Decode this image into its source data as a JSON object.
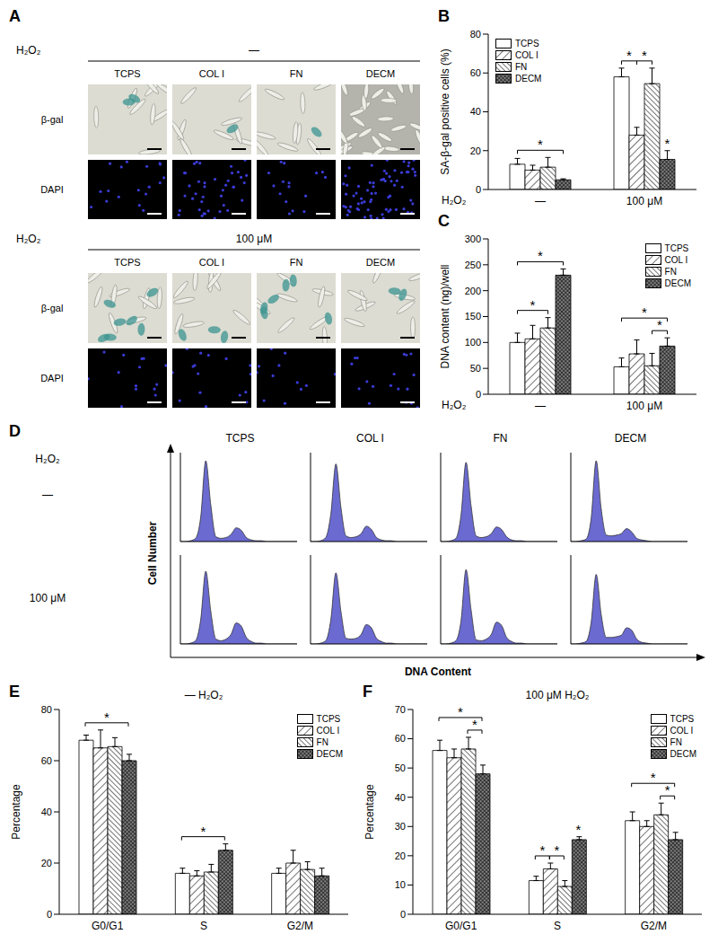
{
  "images": {
    "panel": "A",
    "row_label": "H₂O₂",
    "groups": [
      "—",
      "100 μM"
    ],
    "columns": [
      "TCPS",
      "COL I",
      "FN",
      "DECM"
    ],
    "rows": [
      "β-gal",
      "DAPI"
    ]
  },
  "chart_data": [
    {
      "panel": "B",
      "type": "bar",
      "y_label": "SA-β-gal positive cells (%)",
      "x_label": "H₂O₂",
      "categories": [
        "—",
        "100 μM"
      ],
      "ylim": [
        0,
        80
      ],
      "yticks": [
        0,
        20,
        40,
        60,
        80
      ],
      "legend": "upper left",
      "series": [
        {
          "name": "TCPS",
          "color": "#ffffff",
          "values": [
            13,
            58
          ],
          "errors": [
            3,
            4.5
          ]
        },
        {
          "name": "COL I",
          "color": "#ffffff",
          "values": [
            10,
            28
          ],
          "errors": [
            2.5,
            4
          ]
        },
        {
          "name": "FN",
          "color": "#ffffff",
          "values": [
            11.5,
            54.5
          ],
          "errors": [
            5,
            8
          ]
        },
        {
          "name": "DECM",
          "color": "#808080",
          "values": [
            5,
            15.5
          ],
          "errors": [
            0.5,
            4.5
          ]
        }
      ],
      "annotations": [
        {
          "text": "*",
          "group": "—",
          "from": "TCPS",
          "to": "DECM"
        },
        {
          "text": "*",
          "group": "100 μM",
          "from": "TCPS",
          "to": "COL I"
        },
        {
          "text": "*",
          "group": "100 μM",
          "from": "COL I",
          "to": "FN"
        },
        {
          "text": "*",
          "group": "100 μM",
          "series": "DECM"
        }
      ]
    },
    {
      "panel": "C",
      "type": "bar",
      "y_label": "DNA content (ng)/well",
      "x_label": "H₂O₂",
      "categories": [
        "—",
        "100 μM"
      ],
      "ylim": [
        0,
        300
      ],
      "yticks": [
        0,
        50,
        100,
        150,
        200,
        250,
        300
      ],
      "legend": "upper right",
      "series": [
        {
          "name": "TCPS",
          "color": "#ffffff",
          "values": [
            100,
            53
          ],
          "errors": [
            18,
            17
          ]
        },
        {
          "name": "COL I",
          "color": "#ffffff",
          "values": [
            107,
            78
          ],
          "errors": [
            26,
            27
          ]
        },
        {
          "name": "FN",
          "color": "#ffffff",
          "values": [
            128,
            55
          ],
          "errors": [
            20,
            24
          ]
        },
        {
          "name": "DECM",
          "color": "#808080",
          "values": [
            230,
            93
          ],
          "errors": [
            12,
            16
          ]
        }
      ],
      "annotations": [
        {
          "text": "*",
          "group": "—",
          "from": "TCPS",
          "to": "FN"
        },
        {
          "text": "*",
          "group": "—",
          "from": "TCPS",
          "to": "DECM"
        },
        {
          "text": "*",
          "group": "100 μM",
          "from": "FN",
          "to": "DECM"
        },
        {
          "text": "*",
          "group": "100 μM",
          "from": "TCPS",
          "to": "DECM"
        }
      ]
    },
    {
      "panel": "D",
      "type": "area",
      "row_label": "H₂O₂",
      "x_label": "DNA Content",
      "y_label": "Cell Number",
      "columns": [
        "TCPS",
        "COL I",
        "FN",
        "DECM"
      ],
      "tick_labels": false,
      "color": "#5050c8",
      "x": [
        0,
        1,
        2,
        3,
        4,
        5,
        6,
        7,
        8,
        9,
        10,
        11,
        12,
        13,
        14,
        15,
        16,
        17,
        18,
        19,
        20,
        21,
        22,
        23
      ],
      "xlim": [
        0,
        23
      ],
      "ylim": [
        0,
        110
      ],
      "rows": [
        {
          "label": "—",
          "values": [
            [
              0,
              0,
              1,
              4,
              30,
              100,
              45,
              6,
              4,
              5,
              9,
              17,
              14,
              5,
              2,
              1,
              1,
              0,
              0,
              0,
              0,
              0,
              0,
              0
            ],
            [
              0,
              0,
              1,
              5,
              34,
              96,
              42,
              7,
              5,
              6,
              10,
              19,
              15,
              5,
              2,
              1,
              1,
              0,
              0,
              0,
              0,
              0,
              0,
              0
            ],
            [
              0,
              0,
              1,
              4,
              32,
              98,
              44,
              7,
              5,
              6,
              10,
              18,
              15,
              6,
              2,
              1,
              1,
              0,
              0,
              0,
              0,
              0,
              0,
              0
            ],
            [
              0,
              0,
              1,
              3,
              28,
              100,
              40,
              8,
              7,
              8,
              10,
              16,
              12,
              4,
              2,
              1,
              0,
              0,
              0,
              0,
              0,
              0,
              0,
              0
            ]
          ]
        },
        {
          "label": "100 μM",
          "values": [
            [
              0,
              0,
              1,
              4,
              30,
              90,
              40,
              6,
              4,
              6,
              12,
              26,
              22,
              8,
              3,
              1,
              1,
              0,
              0,
              0,
              0,
              0,
              0,
              0
            ],
            [
              0,
              0,
              1,
              4,
              30,
              88,
              40,
              7,
              6,
              7,
              12,
              24,
              20,
              7,
              3,
              1,
              1,
              0,
              0,
              0,
              0,
              0,
              0,
              0
            ],
            [
              0,
              0,
              1,
              4,
              28,
              92,
              42,
              5,
              4,
              6,
              12,
              27,
              23,
              8,
              3,
              1,
              1,
              0,
              0,
              0,
              0,
              0,
              0,
              0
            ],
            [
              0,
              0,
              1,
              3,
              26,
              86,
              36,
              8,
              8,
              9,
              11,
              20,
              17,
              6,
              2,
              1,
              0,
              0,
              0,
              0,
              0,
              0,
              0,
              0
            ]
          ]
        }
      ]
    },
    {
      "panel": "E",
      "type": "bar",
      "title": "— H₂O₂",
      "y_label": "Percentage",
      "categories": [
        "G0/G1",
        "S",
        "G2/M"
      ],
      "ylim": [
        0,
        80
      ],
      "yticks": [
        0,
        20,
        40,
        60,
        80
      ],
      "legend": "upper right",
      "series": [
        {
          "name": "TCPS",
          "color": "#ffffff",
          "values": [
            68,
            16,
            16
          ],
          "errors": [
            2,
            2,
            2
          ]
        },
        {
          "name": "COL I",
          "color": "#ffffff",
          "values": [
            65,
            15,
            20
          ],
          "errors": [
            7,
            2,
            5
          ]
        },
        {
          "name": "FN",
          "color": "#ffffff",
          "values": [
            65.5,
            16.5,
            17.5
          ],
          "errors": [
            3.5,
            3,
            3
          ]
        },
        {
          "name": "DECM",
          "color": "#808080",
          "values": [
            60,
            25,
            15
          ],
          "errors": [
            2.5,
            2.5,
            3
          ]
        }
      ],
      "annotations": [
        {
          "text": "*",
          "group": "G0/G1",
          "from": "TCPS",
          "to": "DECM"
        },
        {
          "text": "*",
          "group": "S",
          "from": "TCPS",
          "to": "DECM"
        }
      ]
    },
    {
      "panel": "F",
      "type": "bar",
      "title": "100 μM H₂O₂",
      "y_label": "Percentage",
      "categories": [
        "G0/G1",
        "S",
        "G2/M"
      ],
      "ylim": [
        0,
        70
      ],
      "yticks": [
        0,
        10,
        20,
        30,
        40,
        50,
        60,
        70
      ],
      "legend": "upper right",
      "series": [
        {
          "name": "TCPS",
          "color": "#ffffff",
          "values": [
            56,
            11.5,
            32
          ],
          "errors": [
            3.5,
            1.5,
            3
          ]
        },
        {
          "name": "COL I",
          "color": "#ffffff",
          "values": [
            53.5,
            15.5,
            30
          ],
          "errors": [
            3,
            2,
            2
          ]
        },
        {
          "name": "FN",
          "color": "#ffffff",
          "values": [
            56.5,
            9.5,
            34
          ],
          "errors": [
            4,
            2,
            4
          ]
        },
        {
          "name": "DECM",
          "color": "#808080",
          "values": [
            48,
            25.5,
            25.5
          ],
          "errors": [
            3,
            1,
            2.5
          ]
        }
      ],
      "annotations": [
        {
          "text": "*",
          "group": "G0/G1",
          "from": "FN",
          "to": "DECM"
        },
        {
          "text": "*",
          "group": "G0/G1",
          "from": "TCPS",
          "to": "DECM"
        },
        {
          "text": "*",
          "group": "S",
          "from": "TCPS",
          "to": "COL I"
        },
        {
          "text": "*",
          "group": "S",
          "from": "COL I",
          "to": "FN"
        },
        {
          "text": "*",
          "group": "S",
          "series": "DECM"
        },
        {
          "text": "*",
          "group": "G2/M",
          "from": "FN",
          "to": "DECM"
        },
        {
          "text": "*",
          "group": "G2/M",
          "from": "TCPS",
          "to": "DECM"
        }
      ]
    }
  ]
}
